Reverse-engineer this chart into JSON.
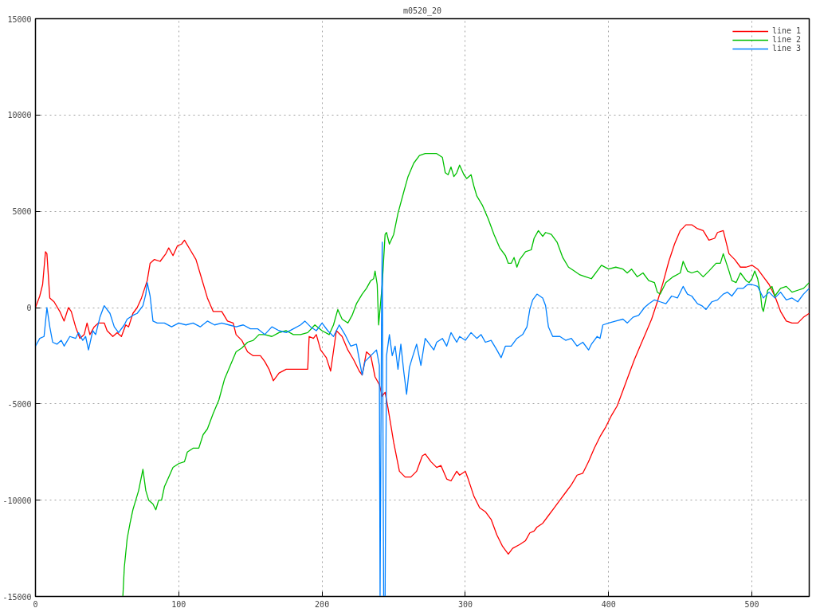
{
  "chart_data": {
    "type": "line",
    "title": "m0520_20",
    "xlim": [
      0,
      540
    ],
    "ylim": [
      -15000,
      15000
    ],
    "xticks": [
      0,
      100,
      200,
      300,
      400,
      500
    ],
    "yticks": [
      -15000,
      -10000,
      -5000,
      0,
      5000,
      10000,
      15000
    ],
    "grid": true,
    "legend": "top right",
    "line_style": "solid",
    "marker": "none",
    "series": [
      {
        "name": "line 1",
        "color": "#ff0000",
        "x": [
          0,
          3,
          5,
          7,
          8,
          10,
          13,
          17,
          20,
          23,
          25,
          28,
          31,
          34,
          36,
          38,
          41,
          44,
          48,
          50,
          54,
          57,
          60,
          63,
          65,
          68,
          71,
          74,
          78,
          80,
          83,
          87,
          91,
          93,
          96,
          99,
          102,
          104,
          108,
          112,
          116,
          120,
          124,
          130,
          134,
          138,
          140,
          144,
          148,
          152,
          157,
          160,
          163,
          166,
          170,
          175,
          185,
          190,
          191,
          194,
          196,
          199,
          203,
          206,
          210,
          214,
          218,
          222,
          226,
          228,
          231,
          234,
          237,
          240,
          242,
          244,
          246,
          250,
          254,
          258,
          262,
          266,
          270,
          272,
          276,
          280,
          283,
          287,
          290,
          294,
          296,
          300,
          302,
          306,
          310,
          314,
          318,
          322,
          326,
          330,
          333,
          338,
          342,
          345,
          348,
          350,
          354,
          358,
          362,
          366,
          370,
          374,
          378,
          382,
          386,
          390,
          394,
          398,
          402,
          406,
          410,
          414,
          418,
          422,
          426,
          430,
          434,
          438,
          442,
          446,
          450,
          454,
          458,
          462,
          466,
          470,
          474,
          476,
          480,
          484,
          488,
          492,
          496,
          500,
          504,
          508,
          512,
          516,
          520,
          524,
          528,
          532,
          536,
          540
        ],
        "values": [
          0,
          600,
          1200,
          2900,
          2800,
          500,
          300,
          -200,
          -700,
          0,
          -200,
          -1000,
          -1600,
          -1400,
          -800,
          -1400,
          -1000,
          -800,
          -800,
          -1200,
          -1500,
          -1300,
          -1500,
          -900,
          -1000,
          -300,
          0,
          500,
          1400,
          2300,
          2500,
          2400,
          2800,
          3100,
          2700,
          3200,
          3300,
          3500,
          3000,
          2500,
          1500,
          500,
          -200,
          -200,
          -700,
          -800,
          -1400,
          -1700,
          -2300,
          -2500,
          -2500,
          -2800,
          -3200,
          -3800,
          -3400,
          -3200,
          -3200,
          -3200,
          -1500,
          -1600,
          -1400,
          -2200,
          -2600,
          -3300,
          -1200,
          -1500,
          -2200,
          -2700,
          -3300,
          -3500,
          -2300,
          -2500,
          -3600,
          -4000,
          -4600,
          -4400,
          -5200,
          -7000,
          -8500,
          -8800,
          -8800,
          -8500,
          -7700,
          -7600,
          -8000,
          -8300,
          -8200,
          -8900,
          -9000,
          -8500,
          -8700,
          -8500,
          -8900,
          -9800,
          -10400,
          -10600,
          -11000,
          -11800,
          -12400,
          -12800,
          -12500,
          -12300,
          -12100,
          -11700,
          -11600,
          -11400,
          -11200,
          -10800,
          -10400,
          -10000,
          -9600,
          -9200,
          -8700,
          -8600,
          -8000,
          -7300,
          -6700,
          -6200,
          -5600,
          -5100,
          -4300,
          -3500,
          -2700,
          -2000,
          -1300,
          -600,
          300,
          1300,
          2400,
          3300,
          4000,
          4300,
          4300,
          4100,
          4000,
          3500,
          3600,
          3900,
          4000,
          2800,
          2500,
          2100,
          2100,
          2200,
          2000,
          1600,
          1200,
          600,
          -200,
          -700,
          -800,
          -800,
          -500,
          -300
        ]
      },
      {
        "name": "line 2",
        "color": "#00c000",
        "x": [
          61,
          62,
          64,
          66,
          68,
          70,
          72,
          75,
          77,
          79,
          82,
          84,
          86,
          88,
          90,
          93,
          96,
          100,
          104,
          106,
          110,
          114,
          117,
          120,
          124,
          128,
          132,
          136,
          140,
          144,
          148,
          152,
          156,
          160,
          165,
          170,
          175,
          180,
          185,
          190,
          195,
          200,
          205,
          208,
          211,
          214,
          218,
          221,
          224,
          228,
          231,
          234,
          236,
          237,
          238.5,
          239.5,
          242,
          244,
          245,
          247,
          250,
          253,
          257,
          260,
          264,
          268,
          272,
          280,
          284,
          286,
          288,
          290,
          292,
          294,
          296,
          299,
          301,
          304,
          306,
          308,
          312,
          316,
          320,
          324,
          328,
          330,
          332,
          334,
          336,
          338,
          342,
          346,
          348,
          351,
          354,
          356,
          360,
          364,
          368,
          372,
          376,
          380,
          384,
          388,
          392,
          395,
          400,
          405,
          410,
          413,
          416,
          420,
          424,
          428,
          432,
          434,
          436,
          440,
          445,
          450,
          452,
          455,
          458,
          462,
          466,
          470,
          475,
          478,
          480,
          484,
          486,
          489,
          492,
          496,
          498,
          500,
          502,
          504,
          506,
          507,
          508,
          511,
          514,
          516,
          520,
          524,
          528,
          532,
          536,
          540
        ],
        "values": [
          -15000,
          -13500,
          -12000,
          -11200,
          -10500,
          -10000,
          -9500,
          -8400,
          -9500,
          -10000,
          -10200,
          -10500,
          -10000,
          -10000,
          -9300,
          -8800,
          -8300,
          -8100,
          -8000,
          -7500,
          -7300,
          -7300,
          -6600,
          -6300,
          -5500,
          -4800,
          -3700,
          -3000,
          -2300,
          -2100,
          -1800,
          -1700,
          -1400,
          -1400,
          -1500,
          -1300,
          -1200,
          -1400,
          -1400,
          -1300,
          -900,
          -1200,
          -1400,
          -900,
          -100,
          -600,
          -800,
          -400,
          200,
          700,
          1000,
          1400,
          1500,
          1900,
          1200,
          -900,
          1200,
          3800,
          3900,
          3300,
          3800,
          4900,
          6000,
          6800,
          7500,
          7900,
          8000,
          8000,
          7800,
          7000,
          6900,
          7300,
          6800,
          7000,
          7400,
          6900,
          6700,
          6900,
          6300,
          5800,
          5300,
          4600,
          3800,
          3100,
          2700,
          2300,
          2300,
          2600,
          2100,
          2500,
          2900,
          3000,
          3600,
          4000,
          3700,
          3900,
          3800,
          3400,
          2600,
          2100,
          1900,
          1700,
          1600,
          1500,
          1900,
          2200,
          2000,
          2100,
          2000,
          1800,
          2000,
          1600,
          1800,
          1400,
          1300,
          800,
          700,
          1300,
          1600,
          1800,
          2400,
          1900,
          1800,
          1900,
          1600,
          1900,
          2300,
          2300,
          2800,
          1900,
          1400,
          1300,
          1800,
          1400,
          1300,
          1500,
          1900,
          1500,
          700,
          0,
          -200,
          900,
          1100,
          600,
          1000,
          1100,
          800,
          900,
          1000,
          1300
        ]
      },
      {
        "name": "line 3",
        "color": "#0080ff",
        "x": [
          0,
          3,
          6,
          8,
          10,
          12,
          15,
          18,
          20,
          24,
          28,
          30,
          33,
          35,
          37,
          40,
          42,
          45,
          48,
          52,
          55,
          58,
          62,
          64,
          68,
          71,
          75,
          77,
          78,
          80,
          82,
          85,
          90,
          95,
          100,
          105,
          110,
          115,
          120,
          125,
          130,
          135,
          140,
          145,
          150,
          155,
          160,
          165,
          170,
          175,
          180,
          185,
          188,
          192,
          196,
          200,
          204,
          208,
          212,
          216,
          220,
          224,
          228,
          230,
          234,
          238,
          240,
          240.5,
          241.5,
          242,
          243,
          244,
          245,
          247,
          249,
          251,
          253,
          255,
          257,
          259,
          261,
          263,
          266,
          269,
          272,
          275,
          278,
          280,
          284,
          287,
          290,
          294,
          296,
          300,
          304,
          308,
          311,
          314,
          318,
          322,
          325,
          328,
          332,
          336,
          340,
          343,
          345,
          347,
          350,
          354,
          356,
          358,
          361,
          366,
          370,
          374,
          378,
          382,
          386,
          388,
          390,
          392,
          394,
          396,
          400,
          405,
          410,
          413,
          417,
          421,
          425,
          428,
          432,
          436,
          440,
          444,
          448,
          450,
          452,
          455,
          458,
          462,
          465,
          468,
          472,
          476,
          480,
          483,
          486,
          490,
          494,
          497,
          500,
          504,
          508,
          512,
          516,
          520,
          524,
          528,
          532,
          536,
          540
        ],
        "values": [
          -2000,
          -1600,
          -1500,
          0,
          -1000,
          -1800,
          -1900,
          -1700,
          -2000,
          -1500,
          -1600,
          -1300,
          -1700,
          -1500,
          -2200,
          -1200,
          -1400,
          -500,
          100,
          -300,
          -1000,
          -1300,
          -900,
          -600,
          -400,
          -300,
          100,
          700,
          1300,
          600,
          -700,
          -800,
          -800,
          -1000,
          -800,
          -900,
          -800,
          -1000,
          -700,
          -900,
          -800,
          -900,
          -1000,
          -900,
          -1100,
          -1100,
          -1400,
          -1000,
          -1200,
          -1300,
          -1100,
          -900,
          -700,
          -1000,
          -1200,
          -800,
          -1200,
          -1500,
          -900,
          -1400,
          -2000,
          -1900,
          -3500,
          -2800,
          -2500,
          -2200,
          -3000,
          -15000,
          -1000,
          3400,
          -15000,
          -15000,
          -2500,
          -1400,
          -2500,
          -2000,
          -3200,
          -1900,
          -3300,
          -4500,
          -3100,
          -2600,
          -1900,
          -3000,
          -1600,
          -1900,
          -2200,
          -1800,
          -1600,
          -2000,
          -1300,
          -1800,
          -1500,
          -1700,
          -1300,
          -1600,
          -1400,
          -1800,
          -1700,
          -2200,
          -2600,
          -2000,
          -2000,
          -1600,
          -1400,
          -1000,
          -100,
          400,
          700,
          500,
          100,
          -1000,
          -1500,
          -1500,
          -1700,
          -1600,
          -2000,
          -1800,
          -2200,
          -1900,
          -1700,
          -1500,
          -1600,
          -900,
          -800,
          -700,
          -600,
          -800,
          -500,
          -400,
          0,
          200,
          400,
          300,
          200,
          600,
          500,
          800,
          1100,
          700,
          600,
          200,
          100,
          -100,
          300,
          400,
          700,
          800,
          600,
          1000,
          1000,
          1200,
          1200,
          1100,
          500,
          800,
          500,
          800,
          400,
          500,
          300,
          700,
          1000
        ]
      }
    ]
  }
}
